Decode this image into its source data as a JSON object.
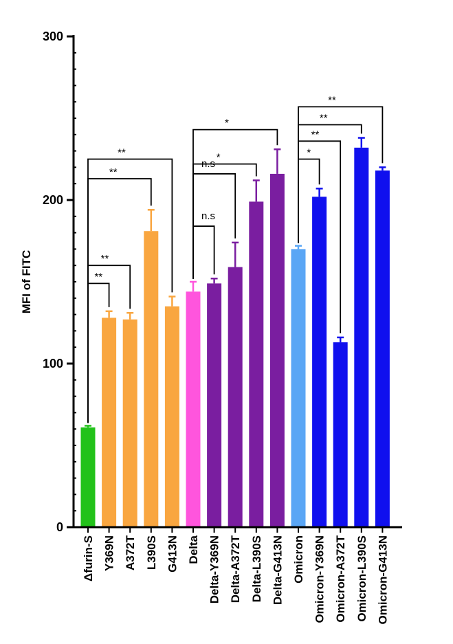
{
  "chart_data": {
    "type": "bar",
    "title": "",
    "xlabel": "",
    "ylabel": "MFI of FITC",
    "ylim": [
      0,
      300
    ],
    "yticks": [
      0,
      100,
      200,
      300
    ],
    "grid": false,
    "legend": "none",
    "categories": [
      "Δfurin-S",
      "Y369N",
      "A372T",
      "L390S",
      "G413N",
      "Delta",
      "Delta-Y369N",
      "Delta-A372T",
      "Delta-L390S",
      "Delta-G413N",
      "Omicron",
      "Omicron-Y369N",
      "Omicron-A372T",
      "Omicron-L390S",
      "Omicron-G413N"
    ],
    "values": [
      61,
      128,
      127,
      181,
      135,
      144,
      149,
      159,
      199,
      216,
      170,
      202,
      113,
      232,
      218
    ],
    "errors": [
      1,
      4,
      4,
      13,
      6,
      6,
      3,
      15,
      13,
      15,
      2,
      5,
      3,
      6,
      2
    ],
    "colors": [
      "#22c21a",
      "#f9a640",
      "#f9a640",
      "#f9a640",
      "#f9a640",
      "#ff55dd",
      "#7a1ea0",
      "#7a1ea0",
      "#7a1ea0",
      "#7a1ea0",
      "#5aa6f5",
      "#1010ee",
      "#1010ee",
      "#1010ee",
      "#1010ee"
    ],
    "significance": [
      {
        "from": 0,
        "to": 1,
        "y": 149,
        "label": "**"
      },
      {
        "from": 0,
        "to": 2,
        "y": 160,
        "label": "**"
      },
      {
        "from": 0,
        "to": 3,
        "y": 213,
        "label": "**"
      },
      {
        "from": 0,
        "to": 4,
        "y": 225,
        "label": "**"
      },
      {
        "from": 5,
        "to": 6,
        "y": 184,
        "label": "n.s"
      },
      {
        "from": 5,
        "to": 7,
        "y": 216,
        "label": "n.s"
      },
      {
        "from": 5,
        "to": 8,
        "y": 222,
        "label": "*"
      },
      {
        "from": 5,
        "to": 9,
        "y": 243,
        "label": "*"
      },
      {
        "from": 10,
        "to": 11,
        "y": 225,
        "label": "*"
      },
      {
        "from": 10,
        "to": 12,
        "y": 236,
        "label": "**"
      },
      {
        "from": 10,
        "to": 13,
        "y": 246,
        "label": "**"
      },
      {
        "from": 10,
        "to": 14,
        "y": 257,
        "label": "**"
      }
    ]
  }
}
